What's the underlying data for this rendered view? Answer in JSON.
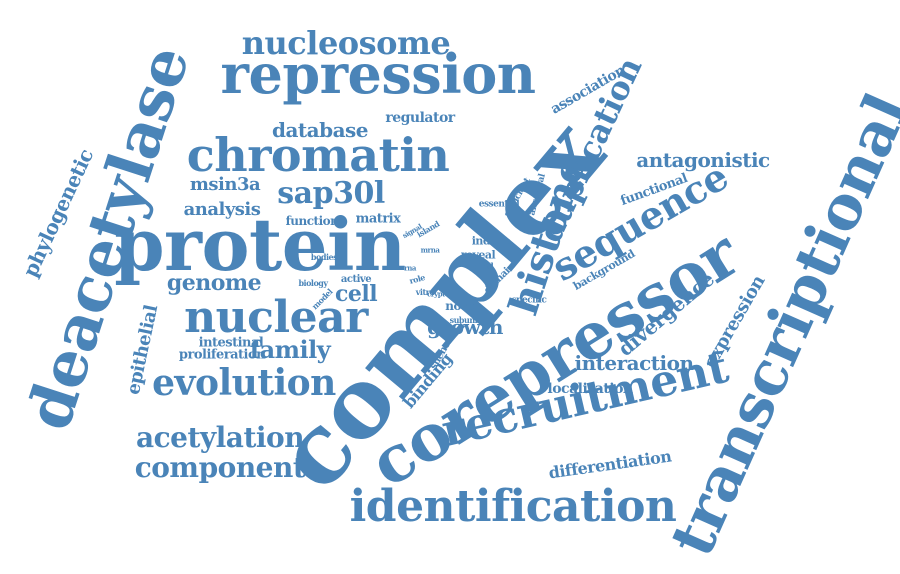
{
  "accent_color": "#4a84b8",
  "background_color": "#ffffff",
  "words": [
    {
      "text": "complex"
    },
    {
      "text": "corepressor"
    },
    {
      "text": "deacetylase"
    },
    {
      "text": "transcriptional"
    },
    {
      "text": "protein"
    },
    {
      "text": "repression"
    },
    {
      "text": "chromatin"
    },
    {
      "text": "recruitment"
    },
    {
      "text": "identification"
    },
    {
      "text": "histone"
    },
    {
      "text": "nuclear"
    },
    {
      "text": "sequence"
    },
    {
      "text": "duplication"
    },
    {
      "text": "evolution"
    },
    {
      "text": "nucleosome"
    },
    {
      "text": "acetylation"
    },
    {
      "text": "component"
    },
    {
      "text": "sap30l"
    },
    {
      "text": "interaction"
    },
    {
      "text": "divergence"
    },
    {
      "text": "phylogenetic"
    },
    {
      "text": "family"
    },
    {
      "text": "genome"
    },
    {
      "text": "database"
    },
    {
      "text": "antagonistic"
    },
    {
      "text": "expression"
    },
    {
      "text": "differentiation"
    },
    {
      "text": "binding"
    },
    {
      "text": "epithelial"
    },
    {
      "text": "msin3a"
    },
    {
      "text": "analysis"
    },
    {
      "text": "cell"
    },
    {
      "text": "growth"
    },
    {
      "text": "association"
    },
    {
      "text": "regulator"
    },
    {
      "text": "localization"
    },
    {
      "text": "functional"
    },
    {
      "text": "matrix"
    },
    {
      "text": "intestinal"
    },
    {
      "text": "proliferation"
    },
    {
      "text": "function"
    },
    {
      "text": "background"
    },
    {
      "text": "novel"
    },
    {
      "text": "induce"
    },
    {
      "text": "reveal"
    },
    {
      "text": "essential"
    },
    {
      "text": "sufficient"
    },
    {
      "text": "ancestral"
    },
    {
      "text": "domain"
    },
    {
      "text": "silencing"
    },
    {
      "text": "specific"
    },
    {
      "text": "subunit"
    },
    {
      "text": "active"
    },
    {
      "text": "bind"
    },
    {
      "text": "role"
    },
    {
      "text": "vitro"
    },
    {
      "text": "crypt"
    },
    {
      "text": "model"
    },
    {
      "text": "biology"
    },
    {
      "text": "bodies"
    },
    {
      "text": "island"
    },
    {
      "text": "signal"
    },
    {
      "text": "mrna"
    },
    {
      "text": "rna"
    }
  ]
}
